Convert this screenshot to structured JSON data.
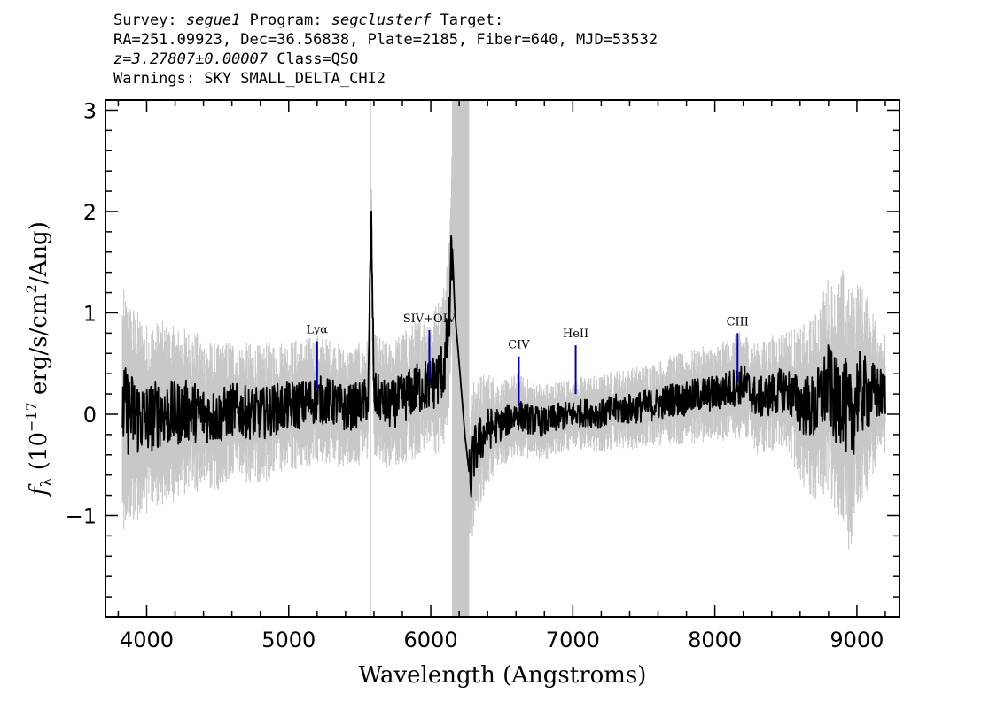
{
  "header": {
    "survey_label": "Survey:",
    "survey_value": "segue1",
    "program_label": "Program:",
    "program_value": "segclusterf",
    "target_label": "Target:",
    "line2": "RA=251.09923, Dec=36.56838, Plate=2185, Fiber=640, MJD=53532",
    "redshift": "z=3.27807±0.00007",
    "class_text": "Class=QSO",
    "warnings": "Warnings: SKY SMALL_DELTA_CHI2"
  },
  "chart_data": {
    "type": "line",
    "title": "",
    "xlabel": "Wavelength (Angstroms)",
    "ylabel": "f_λ (10^-17 erg/s/cm^2/Ang)",
    "xlim": [
      3710,
      9300
    ],
    "ylim": [
      -2.0,
      3.1
    ],
    "x_ticks": [
      4000,
      5000,
      6000,
      7000,
      8000,
      9000
    ],
    "y_ticks": [
      -1,
      0,
      1,
      2,
      3
    ],
    "y_tick_labels": [
      "−1",
      "0",
      "1",
      "2",
      "3"
    ],
    "grid": false,
    "series": [
      {
        "role": "flux",
        "color": "#000000",
        "x": [
          3830,
          3900,
          4000,
          4100,
          4200,
          4300,
          4400,
          4500,
          4600,
          4700,
          4800,
          4900,
          5000,
          5100,
          5200,
          5300,
          5400,
          5500,
          5560,
          5580,
          5600,
          5700,
          5800,
          5900,
          6000,
          6050,
          6100,
          6130,
          6150,
          6170,
          6200,
          6240,
          6280,
          6300,
          6350,
          6400,
          6450,
          6500,
          6600,
          6700,
          6800,
          6900,
          7000,
          7100,
          7200,
          7300,
          7400,
          7500,
          7600,
          7700,
          7800,
          7900,
          8000,
          8100,
          8200,
          8300,
          8400,
          8500,
          8600,
          8700,
          8800,
          8850,
          8900,
          8950,
          9000,
          9100,
          9200
        ],
        "y": [
          0.05,
          0.0,
          -0.05,
          0.02,
          0.0,
          0.04,
          0.0,
          -0.03,
          0.05,
          0.02,
          0.0,
          0.05,
          0.08,
          0.1,
          0.15,
          0.12,
          0.05,
          0.1,
          0.15,
          2.0,
          0.2,
          0.08,
          0.15,
          0.25,
          0.3,
          0.35,
          0.5,
          0.9,
          1.7,
          1.0,
          0.5,
          -0.2,
          -0.7,
          -0.4,
          -0.25,
          -0.15,
          -0.12,
          -0.1,
          0.0,
          -0.05,
          -0.08,
          -0.03,
          0.0,
          0.02,
          0.0,
          0.05,
          0.05,
          0.08,
          0.1,
          0.15,
          0.15,
          0.2,
          0.2,
          0.25,
          0.3,
          0.15,
          0.2,
          0.25,
          0.1,
          0.05,
          0.3,
          0.1,
          0.2,
          -0.1,
          0.2,
          0.2,
          0.2
        ]
      },
      {
        "role": "error",
        "color": "#c8c8c8",
        "x": [
          3830,
          4000,
          4500,
          5000,
          5500,
          5600,
          6000,
          6100,
          6200,
          6300,
          6500,
          7000,
          7500,
          8000,
          8500,
          8800,
          8950,
          9200
        ],
        "y": [
          1.0,
          0.8,
          0.6,
          0.55,
          0.5,
          0.5,
          0.6,
          0.7,
          0.9,
          0.6,
          0.35,
          0.3,
          0.35,
          0.4,
          0.5,
          0.9,
          1.1,
          0.5
        ]
      }
    ],
    "shaded_regions": [
      {
        "x0": 6150,
        "x1": 6270,
        "color": "#c8c8c8"
      }
    ],
    "vertical_lines": [
      {
        "x": 5577,
        "color": "#c8c8c8"
      }
    ],
    "annotations": [
      {
        "label": "Lyα",
        "x": 5200,
        "y": 0.72,
        "bottom": 0.25,
        "color": "#0000aa"
      },
      {
        "label": "SIV+OIV",
        "x": 5990,
        "y": 0.83,
        "bottom": 0.35,
        "color": "#0000aa"
      },
      {
        "label": "CIV",
        "x": 6620,
        "y": 0.57,
        "bottom": 0.08,
        "color": "#0000aa"
      },
      {
        "label": "HeII",
        "x": 7020,
        "y": 0.68,
        "bottom": 0.2,
        "color": "#0000aa"
      },
      {
        "label": "CIII",
        "x": 8160,
        "y": 0.8,
        "bottom": 0.32,
        "color": "#0000aa"
      }
    ]
  }
}
